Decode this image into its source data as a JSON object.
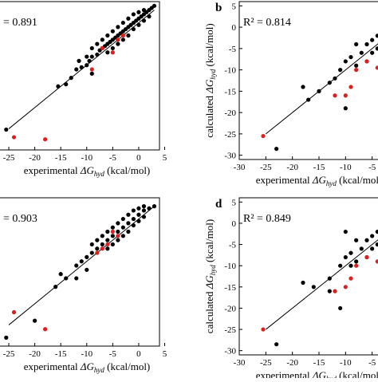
{
  "chart_data": [
    {
      "type": "scatter",
      "panel_label": "",
      "r2_text": "= 0.891",
      "xlabel_prefix": "experimental ",
      "xlabel_delta": "ΔG",
      "xlabel_sub": "hyd",
      "xlabel_suffix": " (kcal/mol)",
      "ylabel": "",
      "xticks": [
        -25,
        -20,
        -15,
        -10,
        -5,
        0,
        5
      ],
      "yticks": [],
      "xlim": [
        -27,
        4
      ],
      "ylim": [
        -30,
        5
      ],
      "fit_line": [
        [
          -25,
          -25
        ],
        [
          3,
          3
        ]
      ],
      "series": [
        {
          "color": "#000000",
          "points": [
            [
              -25.5,
              -25.2
            ],
            [
              -14,
              -14.5
            ],
            [
              -13,
              -13
            ],
            [
              -12,
              -11
            ],
            [
              -11,
              -10.5
            ],
            [
              -10,
              -10
            ],
            [
              -9.5,
              -9
            ],
            [
              -9,
              -8
            ],
            [
              -8,
              -7.5
            ],
            [
              -7.5,
              -6.5
            ],
            [
              -7,
              -6
            ],
            [
              -6.5,
              -5.5
            ],
            [
              -6,
              -5
            ],
            [
              -5.5,
              -4.5
            ],
            [
              -5,
              -4
            ],
            [
              -4.5,
              -3.5
            ],
            [
              -4,
              -3
            ],
            [
              -3.5,
              -2.5
            ],
            [
              -3,
              -2
            ],
            [
              -2.5,
              -1.5
            ],
            [
              -2,
              -1
            ],
            [
              -1.5,
              -0.5
            ],
            [
              -1,
              0
            ],
            [
              -0.5,
              0.5
            ],
            [
              0,
              1
            ],
            [
              0.5,
              1.5
            ],
            [
              1,
              2
            ],
            [
              1.5,
              2.5
            ],
            [
              2,
              3
            ],
            [
              2.5,
              3.5
            ],
            [
              3,
              4
            ],
            [
              -6,
              -3
            ],
            [
              -5,
              -2
            ],
            [
              -4,
              -1
            ],
            [
              -3,
              0
            ],
            [
              -2,
              1
            ],
            [
              -1,
              2
            ],
            [
              0,
              2.5
            ],
            [
              1,
              3
            ],
            [
              -8,
              -5
            ],
            [
              -7,
              -4
            ],
            [
              -9,
              -6
            ],
            [
              -10,
              -8
            ],
            [
              -4,
              -5
            ],
            [
              -3,
              -4
            ],
            [
              -2,
              -3
            ],
            [
              -1,
              -1.5
            ],
            [
              0,
              -0.5
            ],
            [
              1,
              0.5
            ],
            [
              2,
              1.5
            ],
            [
              -6,
              -7
            ],
            [
              -5,
              -6
            ],
            [
              -11.5,
              -9
            ],
            [
              -9,
              -12
            ],
            [
              -15.5,
              -15
            ]
          ]
        },
        {
          "color": "#dd1e1e",
          "points": [
            [
              -24,
              -27
            ],
            [
              -18,
              -27.5
            ],
            [
              -9,
              -11
            ],
            [
              -7,
              -6
            ],
            [
              -5,
              -7
            ],
            [
              -4,
              -4
            ],
            [
              -3,
              -3
            ]
          ]
        }
      ]
    },
    {
      "type": "scatter",
      "panel_label": "b",
      "r2_text": "R² = 0.814",
      "xlabel_prefix": "experimental ",
      "xlabel_delta": "ΔG",
      "xlabel_sub": "hyd",
      "xlabel_suffix": " (kcal/mol)",
      "ylabel_prefix": "calculated ",
      "ylabel_delta": "ΔG",
      "ylabel_sub": "hyd",
      "ylabel_suffix": " (kcal/mol)",
      "xticks": [
        -30,
        -25,
        -20,
        -15,
        -10,
        -5
      ],
      "yticks": [
        -30,
        -25,
        -20,
        -15,
        -10,
        -5,
        0,
        5
      ],
      "xlim": [
        -30,
        -3
      ],
      "ylim": [
        -31,
        6
      ],
      "fit_line": [
        [
          -25,
          -25
        ],
        [
          -3,
          -3
        ]
      ],
      "series": [
        {
          "color": "#000000",
          "points": [
            [
              -23,
              -28.5
            ],
            [
              -17,
              -17
            ],
            [
              -15,
              -15
            ],
            [
              -13,
              -13
            ],
            [
              -11,
              -10
            ],
            [
              -10,
              -8
            ],
            [
              -9,
              -7
            ],
            [
              -8,
              -9
            ],
            [
              -7,
              -6
            ],
            [
              -6,
              -4
            ],
            [
              -5,
              -3
            ],
            [
              -4,
              -2
            ],
            [
              -3.5,
              -1
            ],
            [
              -5,
              -6
            ],
            [
              -4,
              -5
            ],
            [
              -6,
              -8
            ],
            [
              -10,
              -19
            ],
            [
              -12,
              -12
            ],
            [
              -18,
              -14
            ],
            [
              -8,
              -4
            ]
          ]
        },
        {
          "color": "#dd1e1e",
          "points": [
            [
              -25.5,
              -25.5
            ],
            [
              -12,
              -16
            ],
            [
              -10,
              -16
            ],
            [
              -9,
              -14
            ],
            [
              -8,
              -10
            ],
            [
              -6,
              -8
            ],
            [
              -4,
              -9.5
            ]
          ]
        }
      ]
    },
    {
      "type": "scatter",
      "panel_label": "",
      "r2_text": "= 0.903",
      "xlabel_prefix": "experimental ",
      "xlabel_delta": "ΔG",
      "xlabel_sub": "hyd",
      "xlabel_suffix": " (kcal/mol)",
      "ylabel": "",
      "xticks": [
        -25,
        -20,
        -15,
        -10,
        -5,
        0,
        5
      ],
      "yticks": [],
      "xlim": [
        -27,
        4
      ],
      "ylim": [
        -30,
        5
      ],
      "fit_line": [
        [
          -25,
          -25
        ],
        [
          3,
          3
        ]
      ],
      "series": [
        {
          "color": "#000000",
          "points": [
            [
              -25.5,
              -28
            ],
            [
              -20,
              -24
            ],
            [
              -15,
              -13
            ],
            [
              -14,
              -14
            ],
            [
              -12,
              -11
            ],
            [
              -11,
              -10
            ],
            [
              -10,
              -9
            ],
            [
              -9,
              -8
            ],
            [
              -8,
              -7
            ],
            [
              -7,
              -6
            ],
            [
              -6,
              -5
            ],
            [
              -5,
              -4
            ],
            [
              -4,
              -3
            ],
            [
              -3,
              -2
            ],
            [
              -2,
              -1
            ],
            [
              -1,
              0
            ],
            [
              0,
              1
            ],
            [
              1,
              2
            ],
            [
              2,
              2.5
            ],
            [
              3,
              3
            ],
            [
              -6,
              -3
            ],
            [
              -5,
              -2
            ],
            [
              -4,
              -1
            ],
            [
              -3,
              0
            ],
            [
              -2,
              1
            ],
            [
              -1,
              2
            ],
            [
              0,
              2.5
            ],
            [
              1,
              3
            ],
            [
              -8,
              -5
            ],
            [
              -7,
              -4
            ],
            [
              -9,
              -6
            ],
            [
              -4,
              -5
            ],
            [
              -3,
              -4
            ],
            [
              -2,
              -3
            ],
            [
              -1,
              -1.5
            ],
            [
              0,
              -0.5
            ],
            [
              1,
              0.5
            ],
            [
              -6,
              -7
            ],
            [
              -5,
              -6
            ],
            [
              -16,
              -16
            ],
            [
              -12,
              -14
            ],
            [
              -10,
              -12
            ]
          ]
        },
        {
          "color": "#dd1e1e",
          "points": [
            [
              -24,
              -22
            ],
            [
              -18,
              -26
            ],
            [
              -8,
              -8
            ],
            [
              -6,
              -6
            ],
            [
              -5,
              -3
            ],
            [
              -4,
              -4
            ],
            [
              -7,
              -7
            ]
          ]
        }
      ]
    },
    {
      "type": "scatter",
      "panel_label": "d",
      "r2_text": "R² = 0.849",
      "xlabel_prefix": "experimental ",
      "xlabel_delta": "ΔG",
      "xlabel_sub": "hyd",
      "xlabel_suffix": " (kcal/mol)",
      "ylabel_prefix": "calculated ",
      "ylabel_delta": "ΔG",
      "ylabel_sub": "hyd",
      "ylabel_suffix": " (kcal/mol)",
      "xticks": [
        -30,
        -25,
        -20,
        -15,
        -10,
        -5
      ],
      "yticks": [
        -30,
        -25,
        -20,
        -15,
        -10,
        -5,
        0,
        5
      ],
      "xlim": [
        -30,
        -3
      ],
      "ylim": [
        -31,
        6
      ],
      "fit_line": [
        [
          -25,
          -25
        ],
        [
          -3,
          -3
        ]
      ],
      "series": [
        {
          "color": "#000000",
          "points": [
            [
              -23,
              -28.5
            ],
            [
              -18,
              -14
            ],
            [
              -16,
              -15
            ],
            [
              -13,
              -13
            ],
            [
              -11,
              -10
            ],
            [
              -10,
              -8
            ],
            [
              -9,
              -7
            ],
            [
              -8,
              -9
            ],
            [
              -7,
              -6
            ],
            [
              -6,
              -4
            ],
            [
              -5,
              -3
            ],
            [
              -4,
              -2
            ],
            [
              -3.5,
              -1
            ],
            [
              -5,
              -6
            ],
            [
              -4,
              -5
            ],
            [
              -6,
              -8
            ],
            [
              -11,
              -20
            ],
            [
              -13,
              -16
            ],
            [
              -10,
              -2
            ],
            [
              -8,
              -4
            ],
            [
              -9,
              -10
            ]
          ]
        },
        {
          "color": "#dd1e1e",
          "points": [
            [
              -25.5,
              -25
            ],
            [
              -12,
              -16
            ],
            [
              -10,
              -15
            ],
            [
              -9,
              -13
            ],
            [
              -8,
              -10
            ],
            [
              -6,
              -8
            ],
            [
              -4,
              -9
            ]
          ]
        }
      ]
    }
  ]
}
